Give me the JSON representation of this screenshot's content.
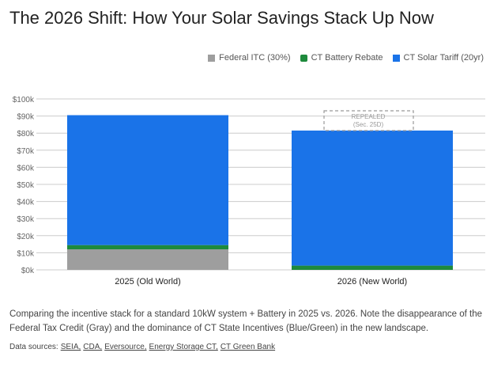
{
  "chart_data": {
    "type": "bar",
    "stacked": true,
    "title": "The 2026 Shift: How Your Solar Savings Stack Up Now",
    "categories": [
      "2025 (Old World)",
      "2026 (New World)"
    ],
    "series": [
      {
        "name": "Federal ITC (30%)",
        "color": "#9e9e9e",
        "values": [
          12,
          0
        ]
      },
      {
        "name": "CT Battery Rebate",
        "color": "#1e8a3c",
        "values": [
          2.5,
          2.5
        ]
      },
      {
        "name": "CT Solar Tariff (20yr)",
        "color": "#1a73e8",
        "values": [
          76,
          79
        ]
      }
    ],
    "ylim": [
      0,
      100
    ],
    "yticks": [
      "$0k",
      "$10k",
      "$20k",
      "$30k",
      "$40k",
      "$50k",
      "$60k",
      "$70k",
      "$80k",
      "$90k",
      "$100k"
    ],
    "annotation": {
      "line1": "REPEALED",
      "line2": "(Sec. 25D)"
    },
    "legend_position": "top-right"
  },
  "caption": "Comparing the incentive stack for a standard 10kW system + Battery in 2025 vs. 2026. Note the disappearance of the Federal Tax Credit (Gray) and the dominance of CT State Incentives (Blue/Green) in the new landscape.",
  "sources_label": "Data sources:",
  "sources": [
    "SEIA,",
    "CDA,",
    "Eversource,",
    "Energy Storage CT,",
    "CT Green Bank"
  ]
}
